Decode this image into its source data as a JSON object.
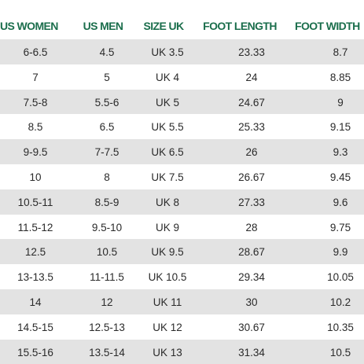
{
  "table": {
    "headers": [
      "US WOMEN",
      "US MEN",
      "SIZE UK",
      "FOOT LENGTH",
      "FOOT WIDTH"
    ],
    "rows": [
      [
        "6-6.5",
        "4.5",
        "UK 3.5",
        "23.33",
        "8.7"
      ],
      [
        "7",
        "5",
        "UK 4",
        "24",
        "8.85"
      ],
      [
        "7.5-8",
        "5.5-6",
        "UK 5",
        "24.67",
        "9"
      ],
      [
        "8.5",
        "6.5",
        "UK 5.5",
        "25.33",
        "9.15"
      ],
      [
        "9-9.5",
        "7-7.5",
        "UK 6.5",
        "26",
        "9.3"
      ],
      [
        "10",
        "8",
        "UK 7.5",
        "26.67",
        "9.45"
      ],
      [
        "10.5-11",
        "8.5-9",
        "UK 8",
        "27.33",
        "9.6"
      ],
      [
        "11.5-12",
        "9.5-10",
        "UK 9",
        "28",
        "9.75"
      ],
      [
        "12.5",
        "10.5",
        "UK 9.5",
        "28.67",
        "9.9"
      ],
      [
        "13-13.5",
        "11-11.5",
        "UK 10.5",
        "29.34",
        "10.05"
      ],
      [
        "14",
        "12",
        "UK 11",
        "30",
        "10.2"
      ],
      [
        "14.5-15",
        "12.5-13",
        "UK 12",
        "30.67",
        "10.35"
      ],
      [
        "15.5-16",
        "13.5-14",
        "UK 13",
        "31.34",
        "10.5"
      ]
    ]
  },
  "colors": {
    "header_text": "#1b6e4c",
    "stripe": "#e3e3e3",
    "body_text": "#2a2a2a"
  }
}
